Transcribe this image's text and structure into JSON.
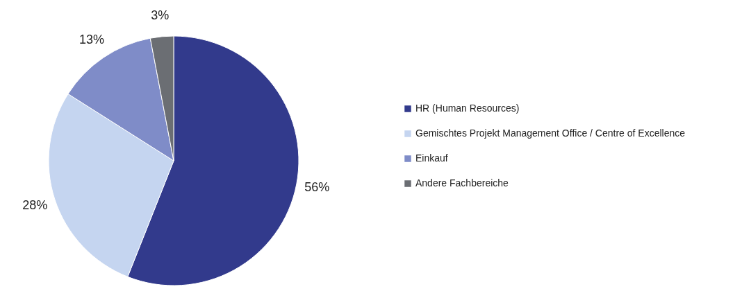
{
  "chart_data": {
    "type": "pie",
    "categories": [
      "HR (Human Resources)",
      "Gemischtes Projekt Management Office / Centre of Excellence",
      "Einkauf",
      "Andere Fachbereiche"
    ],
    "values": [
      56,
      28,
      13,
      3
    ],
    "colors": [
      "#323a8c",
      "#c5d5f0",
      "#7f8cc8",
      "#6b6e73"
    ],
    "value_labels": [
      "56%",
      "28%",
      "13%",
      "3%"
    ],
    "legend": "right"
  }
}
